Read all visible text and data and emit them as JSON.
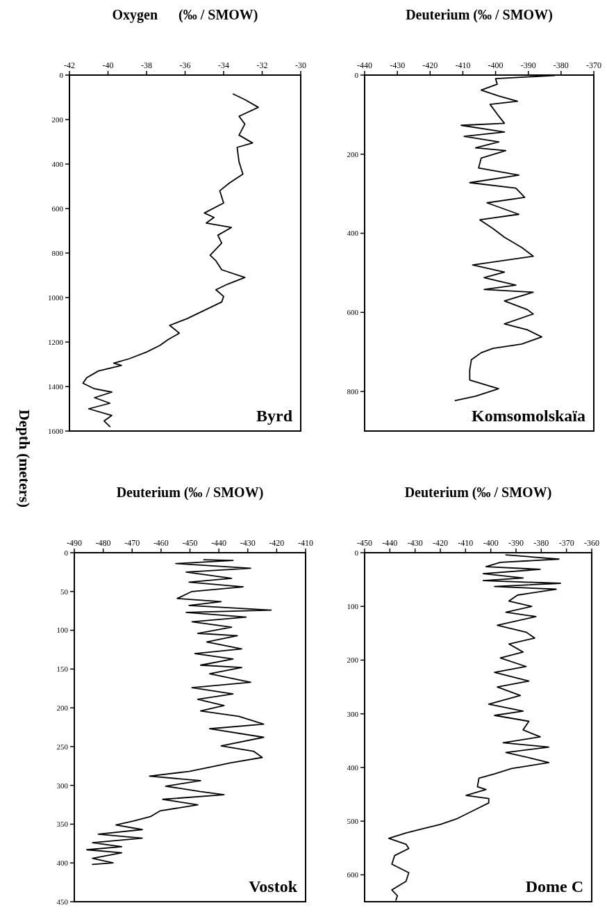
{
  "chart_data": [
    {
      "type": "line",
      "xlabel": "Oxygen      (‰ / SMOW)",
      "ylabel": "Depth (meters)",
      "annotations": [
        "Byrd"
      ],
      "xlim": [
        -42,
        -30
      ],
      "xticks": [
        -42,
        -40,
        -38,
        -36,
        -34,
        -32,
        -30
      ],
      "ylim": [
        1600,
        0
      ],
      "yticks": [
        0,
        200,
        400,
        600,
        800,
        1000,
        1200,
        1400,
        1600
      ],
      "series": [
        {
          "color": "#000000",
          "x": [
            -33.5,
            -32.9,
            -32.2,
            -33.2,
            -32.9,
            -33.2,
            -32.5,
            -33.3,
            -33.2,
            -33.0,
            -33.7,
            -34.2,
            -34.0,
            -35.0,
            -34.5,
            -34.9,
            -33.6,
            -34.3,
            -34.1,
            -34.7,
            -34.4,
            -34.1,
            -32.9,
            -33.8,
            -34.4,
            -34.0,
            -34.1,
            -35.3,
            -35.9,
            -36.8,
            -36.3,
            -36.9,
            -37.3,
            -38.0,
            -38.9,
            -39.7,
            -39.3,
            -40.5,
            -41.1,
            -41.3,
            -40.7,
            -39.8,
            -40.7,
            -39.9,
            -41.0,
            -39.8,
            -40.2,
            -39.9
          ],
          "values": [
            85,
            110,
            145,
            185,
            220,
            270,
            305,
            325,
            390,
            445,
            485,
            520,
            575,
            620,
            640,
            665,
            685,
            720,
            755,
            810,
            835,
            875,
            910,
            940,
            965,
            995,
            1020,
            1070,
            1095,
            1125,
            1160,
            1190,
            1215,
            1245,
            1275,
            1295,
            1305,
            1330,
            1360,
            1385,
            1410,
            1425,
            1450,
            1475,
            1500,
            1530,
            1555,
            1580
          ]
        }
      ]
    },
    {
      "type": "line",
      "xlabel": "Deuterium (‰ / SMOW)",
      "annotations": [
        "Komsomolskaïa"
      ],
      "xlim": [
        -440,
        -370
      ],
      "xticks": [
        -440,
        -430,
        -420,
        -410,
        -400,
        -390,
        -380,
        -370
      ],
      "ylim": [
        900,
        0
      ],
      "yticks": [
        0,
        200,
        400,
        600,
        800
      ],
      "series": [
        {
          "color": "#000000",
          "x": [
            -382,
            -400,
            -399.5,
            -404.4,
            -399,
            -393.3,
            -401.7,
            -399,
            -397.3,
            -410.5,
            -397.3,
            -409.6,
            -399,
            -406.1,
            -396.9,
            -404.4,
            -405.2,
            -392.9,
            -407.9,
            -393.8,
            -391.1,
            -402.6,
            -392.9,
            -404.8,
            -400.8,
            -397.3,
            -392,
            -388.5,
            -407,
            -397.3,
            -403.5,
            -393.8,
            -403.5,
            -388.5,
            -397.3,
            -390.3,
            -388.5,
            -397.3,
            -390.3,
            -385.9,
            -392,
            -400.8,
            -404.4,
            -407.4,
            -407.9,
            -407.9,
            -399.1,
            -406.1,
            -412.3
          ],
          "values": [
            1,
            9,
            23,
            38,
            53,
            66,
            74,
            104,
            122,
            127,
            144,
            155,
            169,
            184,
            191,
            210,
            235,
            253,
            272,
            286,
            309,
            323,
            352,
            366,
            388,
            410,
            436,
            458,
            480,
            498,
            512,
            531,
            542,
            549,
            571,
            593,
            604,
            629,
            644,
            662,
            680,
            691,
            702,
            720,
            746,
            771,
            793,
            812,
            823
          ]
        }
      ]
    },
    {
      "type": "line",
      "xlabel": "Deuterium (‰ / SMOW)",
      "annotations": [
        "Vostok"
      ],
      "xlim": [
        -490,
        -410
      ],
      "xticks": [
        -490,
        -480,
        -470,
        -460,
        -450,
        -440,
        -430,
        -420,
        -410
      ],
      "ylim": [
        450,
        0
      ],
      "yticks": [
        0,
        50,
        100,
        150,
        200,
        250,
        300,
        350,
        400,
        450
      ],
      "series": [
        {
          "color": "#000000",
          "x": [
            -445.2,
            -435.1,
            -454.9,
            -429,
            -451.3,
            -435.6,
            -450.3,
            -431.6,
            -449.3,
            -454.4,
            -439.2,
            -450.3,
            -421.9,
            -451.3,
            -430.6,
            -449.3,
            -435.6,
            -447.3,
            -433.6,
            -444.2,
            -432.1,
            -448.3,
            -435.1,
            -446.3,
            -432.1,
            -443.2,
            -429,
            -449.3,
            -435.1,
            -447.3,
            -438.2,
            -446.3,
            -433.1,
            -424.5,
            -443.2,
            -424.5,
            -439.2,
            -428,
            -425,
            -436.1,
            -441.2,
            -450.3,
            -464,
            -446.3,
            -458.4,
            -446.3,
            -438.2,
            -459.4,
            -447.3,
            -460.4,
            -463.5,
            -469.5,
            -475.6,
            -466.5,
            -481.7,
            -466.5,
            -483.7,
            -473.6,
            -485.7,
            -473.6,
            -483.7,
            -476.6,
            -483.7
          ],
          "values": [
            9,
            10,
            14,
            20,
            25,
            33,
            38,
            44,
            50,
            59,
            63,
            68,
            74,
            77,
            83,
            89,
            96,
            104,
            107,
            115,
            124,
            130,
            137,
            145,
            148,
            156,
            167,
            174,
            182,
            189,
            197,
            204,
            211,
            221,
            227,
            238,
            249,
            256,
            264,
            271,
            275,
            282,
            288,
            294,
            301,
            308,
            312,
            318,
            325,
            333,
            340,
            346,
            351,
            357,
            363,
            368,
            374,
            379,
            383,
            387,
            394,
            400,
            402
          ]
        }
      ]
    },
    {
      "type": "line",
      "xlabel": "Deuterium (‰ / SMOW)",
      "annotations": [
        "Dome C"
      ],
      "xlim": [
        -450,
        -360
      ],
      "xticks": [
        -450,
        -440,
        -430,
        -420,
        -410,
        -400,
        -390,
        -380,
        -370,
        -360
      ],
      "ylim": [
        650,
        0
      ],
      "yticks": [
        0,
        100,
        200,
        300,
        400,
        500,
        600
      ],
      "series": [
        {
          "color": "#000000",
          "x": [
            -394,
            -373,
            -396.2,
            -401.9,
            -380.4,
            -403,
            -387.2,
            -403,
            -372.4,
            -398.5,
            -374.1,
            -389.4,
            -392.8,
            -383.8,
            -394,
            -382.1,
            -397.4,
            -386,
            -382.6,
            -392.8,
            -387.2,
            -396.2,
            -386,
            -398.5,
            -384.9,
            -397.4,
            -388.3,
            -400.8,
            -387.2,
            -398.5,
            -384.9,
            -387.2,
            -380.4,
            -395.1,
            -377,
            -394,
            -383.8,
            -377,
            -391.7,
            -398.5,
            -404.7,
            -405.3,
            -401.9,
            -409.8,
            -400.8,
            -400.8,
            -406.4,
            -413.2,
            -420,
            -426.8,
            -433.6,
            -440.4,
            -433.6,
            -432.5,
            -438.1,
            -439.2,
            -432.5,
            -433.6,
            -439.2,
            -437,
            -437.6
          ],
          "values": [
            4,
            12,
            18,
            26,
            31,
            39,
            47,
            52,
            57,
            63,
            68,
            79,
            90,
            100,
            111,
            119,
            135,
            148,
            159,
            170,
            185,
            196,
            212,
            223,
            239,
            250,
            266,
            282,
            295,
            303,
            314,
            330,
            343,
            354,
            362,
            372,
            383,
            391,
            402,
            412,
            420,
            436,
            441,
            452,
            458,
            466,
            479,
            495,
            506,
            514,
            522,
            532,
            543,
            551,
            564,
            580,
            596,
            612,
            628,
            639,
            647
          ]
        }
      ]
    }
  ]
}
